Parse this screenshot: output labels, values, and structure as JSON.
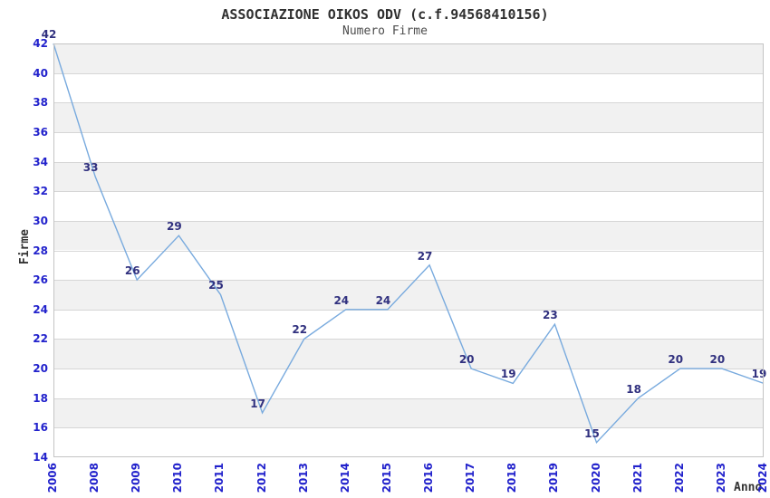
{
  "chart_data": {
    "type": "line",
    "title": "ASSOCIAZIONE OIKOS ODV (c.f.94568410156)",
    "subtitle": "Numero Firme",
    "xlabel": "Anno",
    "ylabel": "Firme",
    "categories": [
      "2006",
      "2008",
      "2009",
      "2010",
      "2011",
      "2012",
      "2013",
      "2014",
      "2015",
      "2016",
      "2017",
      "2018",
      "2019",
      "2020",
      "2021",
      "2022",
      "2023",
      "2024"
    ],
    "values": [
      42,
      33,
      26,
      29,
      25,
      17,
      22,
      24,
      24,
      27,
      20,
      19,
      23,
      15,
      18,
      20,
      20,
      19
    ],
    "ylim": [
      14,
      42
    ],
    "ytick_step": 2,
    "grid": "horizontal",
    "banded_background": true,
    "show_point_labels": true,
    "legend": "none",
    "colors": {
      "line": "#78aade",
      "tick_label": "#2222cc",
      "point_label": "#31317f",
      "title": "#303030",
      "subtitle": "#4d4d4d",
      "axis_label": "#333333",
      "band": "#f1f1f1",
      "gridline": "#d6d6d6",
      "plot_border": "#c4c4c4",
      "background": "#ffffff"
    }
  }
}
